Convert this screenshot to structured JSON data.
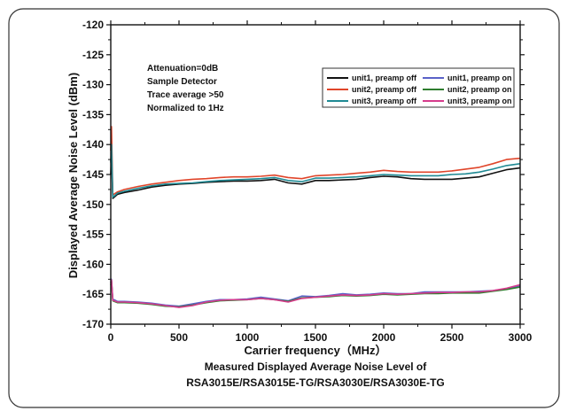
{
  "chart_data": {
    "type": "line",
    "title": "",
    "xlabel": "Carrier frequency（MHz）",
    "ylabel": "Displayed Average Noise Level (dBm)",
    "xlim": [
      0,
      3000
    ],
    "ylim": [
      -170,
      -120
    ],
    "x_ticks": [
      "0",
      "500",
      "1000",
      "1500",
      "2000",
      "2500",
      "3000"
    ],
    "y_ticks": [
      "-120",
      "-125",
      "-130",
      "-135",
      "-140",
      "-145",
      "-150",
      "-155",
      "-160",
      "-165",
      "-170"
    ],
    "grid": false,
    "legend_position": "top-right",
    "annotations": [
      "Attenuation=0dB",
      "Sample Detector",
      "Trace average >50",
      "Normalized to 1Hz"
    ],
    "caption": [
      "Measured Displayed Average Noise Level of",
      "RSA3015E/RSA3015E-TG/RSA3030E/RSA3030E-TG"
    ],
    "series": [
      {
        "name": "unit1, preamp off",
        "color": "#111111",
        "x": [
          0,
          5,
          15,
          50,
          100,
          200,
          300,
          400,
          500,
          600,
          700,
          800,
          900,
          1000,
          1100,
          1200,
          1300,
          1400,
          1500,
          1600,
          1700,
          1800,
          1900,
          2000,
          2100,
          2200,
          2300,
          2400,
          2500,
          2600,
          2700,
          2800,
          2900,
          3000
        ],
        "y": [
          -145,
          -141.5,
          -149,
          -148.3,
          -148,
          -147.6,
          -147.1,
          -146.8,
          -146.6,
          -146.5,
          -146.3,
          -146.2,
          -146.1,
          -146.1,
          -146.0,
          -145.8,
          -146.4,
          -146.6,
          -146.0,
          -146.0,
          -145.9,
          -145.8,
          -145.5,
          -145.3,
          -145.4,
          -145.7,
          -145.8,
          -145.8,
          -145.8,
          -145.6,
          -145.4,
          -144.8,
          -144.2,
          -143.9
        ]
      },
      {
        "name": "unit1, preamp on",
        "color": "#5a62c8",
        "x": [
          0,
          5,
          15,
          50,
          100,
          200,
          300,
          400,
          500,
          600,
          700,
          800,
          900,
          1000,
          1100,
          1200,
          1300,
          1400,
          1500,
          1600,
          1700,
          1800,
          1900,
          2000,
          2100,
          2200,
          2300,
          2400,
          2500,
          2600,
          2700,
          2800,
          2900,
          3000
        ],
        "y": [
          -163,
          -162.5,
          -165.8,
          -166.2,
          -166.2,
          -166.3,
          -166.5,
          -166.8,
          -167,
          -166.6,
          -166.2,
          -165.9,
          -165.9,
          -165.8,
          -165.5,
          -165.8,
          -166.1,
          -165.3,
          -165.4,
          -165.2,
          -164.9,
          -165.1,
          -165.0,
          -164.8,
          -164.9,
          -164.9,
          -164.6,
          -164.6,
          -164.6,
          -164.6,
          -164.5,
          -164.4,
          -164.1,
          -163.6
        ]
      },
      {
        "name": "unit2, preamp off",
        "color": "#e0452a",
        "x": [
          0,
          5,
          15,
          50,
          100,
          200,
          300,
          400,
          500,
          600,
          700,
          800,
          900,
          1000,
          1100,
          1200,
          1300,
          1400,
          1500,
          1600,
          1700,
          1800,
          1900,
          2000,
          2100,
          2200,
          2300,
          2400,
          2500,
          2600,
          2700,
          2800,
          2900,
          3000
        ],
        "y": [
          -141,
          -137,
          -148.4,
          -147.9,
          -147.5,
          -147,
          -146.6,
          -146.3,
          -146,
          -145.8,
          -145.7,
          -145.5,
          -145.4,
          -145.4,
          -145.3,
          -145.1,
          -145.5,
          -145.7,
          -145.2,
          -145.1,
          -145.0,
          -144.8,
          -144.6,
          -144.3,
          -144.5,
          -144.6,
          -144.6,
          -144.6,
          -144.4,
          -144.1,
          -143.8,
          -143.2,
          -142.5,
          -142.3
        ]
      },
      {
        "name": "unit2, preamp on",
        "color": "#2e7d2e",
        "x": [
          0,
          5,
          15,
          50,
          100,
          200,
          300,
          400,
          500,
          600,
          700,
          800,
          900,
          1000,
          1100,
          1200,
          1300,
          1400,
          1500,
          1600,
          1700,
          1800,
          1900,
          2000,
          2100,
          2200,
          2300,
          2400,
          2500,
          2600,
          2700,
          2800,
          2900,
          3000
        ],
        "y": [
          -163.5,
          -162.8,
          -166.1,
          -166.4,
          -166.4,
          -166.5,
          -166.7,
          -167,
          -167.1,
          -166.8,
          -166.4,
          -166.1,
          -166.0,
          -165.9,
          -165.7,
          -165.9,
          -166.2,
          -165.6,
          -165.5,
          -165.4,
          -165.2,
          -165.3,
          -165.2,
          -165.0,
          -165.1,
          -165.0,
          -164.9,
          -164.9,
          -164.8,
          -164.8,
          -164.8,
          -164.5,
          -164.2,
          -163.8
        ]
      },
      {
        "name": "unit3, preamp off",
        "color": "#1f8a94",
        "x": [
          0,
          5,
          15,
          50,
          100,
          200,
          300,
          400,
          500,
          600,
          700,
          800,
          900,
          1000,
          1100,
          1200,
          1300,
          1400,
          1500,
          1600,
          1700,
          1800,
          1900,
          2000,
          2100,
          2200,
          2300,
          2400,
          2500,
          2600,
          2700,
          2800,
          2900,
          3000
        ],
        "y": [
          -143,
          -140,
          -148.8,
          -148.1,
          -147.8,
          -147.3,
          -146.9,
          -146.6,
          -146.5,
          -146.4,
          -146.2,
          -146.0,
          -145.9,
          -145.8,
          -145.7,
          -145.5,
          -146.0,
          -146.2,
          -145.6,
          -145.6,
          -145.5,
          -145.4,
          -145.2,
          -145.0,
          -145.1,
          -145.2,
          -145.2,
          -145.2,
          -145.0,
          -144.9,
          -144.6,
          -144.1,
          -143.5,
          -143.2
        ]
      },
      {
        "name": "unit3, preamp on",
        "color": "#d63c8c",
        "x": [
          0,
          5,
          15,
          50,
          100,
          200,
          300,
          400,
          500,
          600,
          700,
          800,
          900,
          1000,
          1100,
          1200,
          1300,
          1400,
          1500,
          1600,
          1700,
          1800,
          1900,
          2000,
          2100,
          2200,
          2300,
          2400,
          2500,
          2600,
          2700,
          2800,
          2900,
          3000
        ],
        "y": [
          -163.2,
          -162.6,
          -166,
          -166.3,
          -166.3,
          -166.4,
          -166.6,
          -166.9,
          -167.2,
          -166.9,
          -166.3,
          -166.0,
          -165.9,
          -165.9,
          -165.7,
          -165.9,
          -166.3,
          -165.7,
          -165.5,
          -165.3,
          -165.1,
          -165.2,
          -165.1,
          -164.9,
          -165.0,
          -164.9,
          -164.8,
          -164.7,
          -164.7,
          -164.6,
          -164.6,
          -164.4,
          -164.0,
          -163.4
        ]
      }
    ]
  }
}
